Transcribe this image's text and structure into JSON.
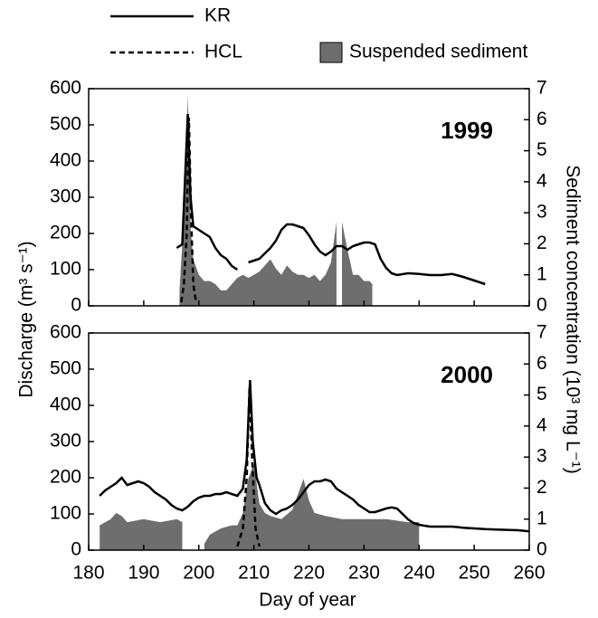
{
  "chart_data": {
    "type": "line",
    "xlabel": "Day of year",
    "ylabel": "Discharge (m³ s⁻¹)",
    "y2label": "Sediment concentration (10³ mg L⁻¹)",
    "xlim": [
      180,
      260
    ],
    "xticks": [
      180,
      190,
      200,
      210,
      220,
      230,
      240,
      250,
      260
    ],
    "ylim": [
      0,
      600
    ],
    "yticks": [
      0,
      100,
      200,
      300,
      400,
      500,
      600
    ],
    "y2lim": [
      0,
      7
    ],
    "y2ticks": [
      0,
      1,
      2,
      3,
      4,
      5,
      6,
      7
    ],
    "legend": [
      {
        "name": "KR",
        "color": "#000000",
        "style": "solid"
      },
      {
        "name": "HCL",
        "color": "#000000",
        "style": "dashed"
      },
      {
        "name": "Suspended sediment",
        "color": "#6e6e6e",
        "style": "area"
      }
    ],
    "panels": [
      {
        "label": "1999",
        "series": [
          {
            "x": [
              196,
              197,
              197.5,
              198,
              198.5,
              199,
              200,
              201,
              202,
              203,
              204,
              205,
              206,
              207,
              208,
              209,
              210,
              211,
              212,
              213,
              214,
              215,
              216,
              217,
              218,
              219,
              220,
              221,
              222,
              223,
              224,
              225,
              226,
              227,
              228,
              229,
              230,
              231,
              232,
              233,
              234,
              235,
              236,
              238,
              240,
              242,
              244,
              246,
              248,
              250,
              252
            ],
            "values": [
              160,
              170,
              350,
              530,
              300,
              220,
              210,
              200,
              190,
              160,
              140,
              130,
              110,
              100,
              null,
              120,
              125,
              130,
              145,
              160,
              180,
              210,
              225,
              225,
              220,
              215,
              195,
              170,
              150,
              140,
              150,
              165,
              165,
              155,
              165,
              170,
              175,
              175,
              170,
              130,
              105,
              90,
              85,
              90,
              88,
              85,
              85,
              88,
              80,
              70,
              60
            ]
          },
          {
            "x": [
              196.8,
              197.3,
              197.8,
              198.2,
              198.6,
              199,
              199.5
            ],
            "values": [
              10,
              60,
              200,
              520,
              250,
              60,
              10
            ]
          },
          {
            "axis": "y2",
            "x": [
              196.5,
              197,
              197.5,
              198,
              198.5,
              199,
              200,
              201,
              202,
              203,
              204,
              205,
              206,
              207,
              208,
              209,
              210,
              211,
              212,
              213,
              214,
              215,
              216,
              217,
              218,
              219,
              220,
              221,
              222,
              223,
              224,
              225,
              225.7,
              226,
              227,
              228,
              229,
              230,
              231,
              231.5
            ],
            "values": [
              0.5,
              2,
              3.8,
              6.8,
              2.5,
              1.5,
              1.0,
              0.8,
              0.8,
              0.7,
              0.5,
              0.5,
              0.7,
              0.9,
              1.0,
              0.9,
              1.0,
              1.1,
              1.3,
              1.5,
              1.2,
              1.0,
              1.3,
              1.1,
              1.0,
              1.0,
              0.9,
              1.0,
              0.8,
              1.0,
              1.4,
              2.7,
              null,
              2.7,
              1.8,
              1.0,
              1.0,
              0.8,
              0.8,
              0.7
            ]
          }
        ]
      },
      {
        "label": "2000",
        "series": [
          {
            "x": [
              182,
              183,
              184,
              185,
              186,
              187,
              188,
              189,
              190,
              191,
              192,
              193,
              194,
              195,
              196,
              197,
              198,
              199,
              200,
              201,
              202,
              203,
              204,
              205,
              206,
              207,
              208,
              208.7,
              209.3,
              209.8,
              210.5,
              211,
              212,
              213,
              214,
              215,
              216,
              217,
              218,
              219,
              220,
              221,
              222,
              223,
              224,
              225,
              226,
              227,
              228,
              229,
              230,
              231,
              232,
              233,
              234,
              235,
              236,
              237,
              238,
              239,
              240,
              242,
              244,
              246,
              248,
              250,
              252,
              254,
              256,
              258,
              260
            ],
            "values": [
              150,
              165,
              175,
              185,
              200,
              180,
              185,
              190,
              185,
              175,
              160,
              150,
              140,
              125,
              115,
              110,
              120,
              135,
              145,
              150,
              150,
              155,
              155,
              160,
              155,
              150,
              170,
              250,
              470,
              300,
              200,
              180,
              130,
              110,
              100,
              110,
              115,
              125,
              140,
              160,
              180,
              190,
              190,
              195,
              190,
              170,
              160,
              150,
              140,
              125,
              115,
              105,
              105,
              110,
              115,
              118,
              115,
              100,
              85,
              75,
              70,
              65,
              65,
              65,
              62,
              60,
              58,
              57,
              56,
              55,
              52
            ]
          },
          {
            "x": [
              207,
              208,
              208.7,
              209.2,
              209.7,
              210.3,
              211
            ],
            "values": [
              10,
              60,
              200,
              450,
              250,
              60,
              10
            ]
          },
          {
            "axis": "y2",
            "x": [
              182,
              183,
              184,
              185,
              186,
              187,
              190,
              193,
              196,
              197,
              198,
              201,
              202,
              204,
              206,
              207,
              208,
              209,
              210,
              211,
              212,
              213,
              215,
              217,
              218,
              219,
              220,
              221,
              223,
              226,
              230,
              234,
              238,
              240
            ],
            "values": [
              0.8,
              0.9,
              1.0,
              1.2,
              1.1,
              0.9,
              1.0,
              0.9,
              1.0,
              0.9,
              null,
              0.2,
              0.5,
              0.7,
              0.8,
              0.8,
              1.2,
              2.3,
              2.8,
              1.5,
              1.2,
              1.1,
              1.0,
              1.3,
              1.8,
              2.3,
              1.6,
              1.2,
              1.1,
              1.0,
              1.0,
              1.0,
              0.9,
              0.9
            ]
          }
        ]
      }
    ]
  }
}
